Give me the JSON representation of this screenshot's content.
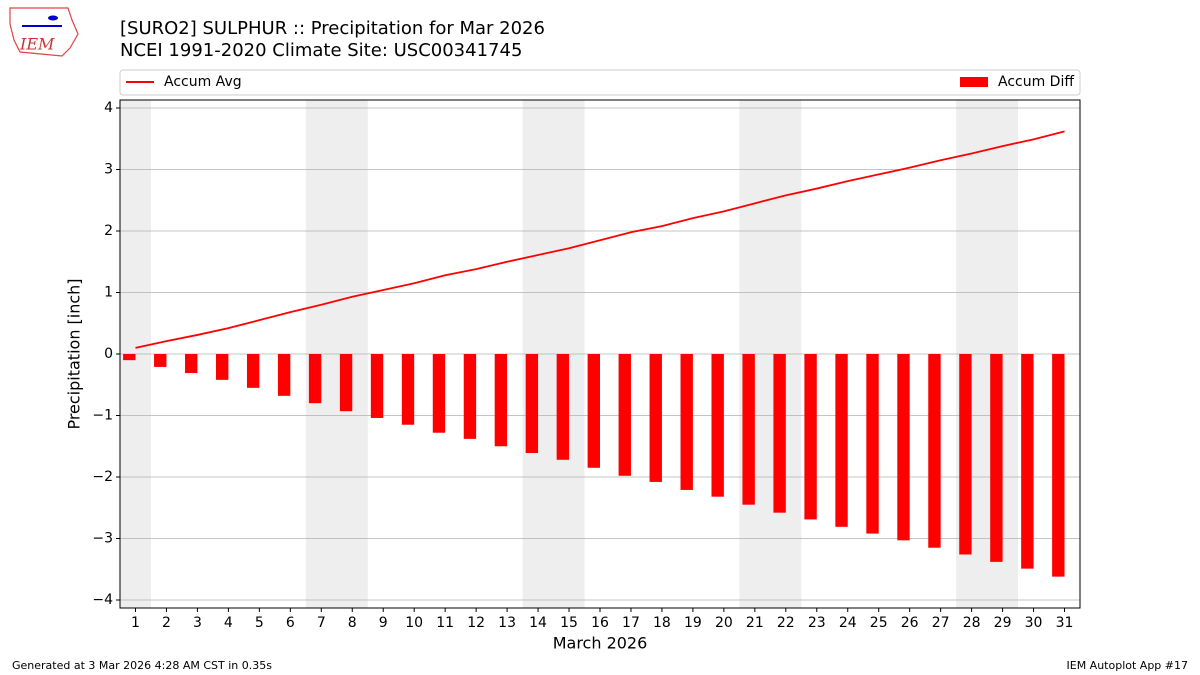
{
  "chart_data": {
    "type": "bar_line",
    "title": "[SURO2] SULPHUR :: Precipitation for Mar 2026",
    "subtitle": "NCEI 1991-2020 Climate Site: USC00341745",
    "xlabel": "March 2026",
    "ylabel": "Precipitation [inch]",
    "logo": "IEM",
    "footer_left": "Generated at 3 Mar 2026 4:28 AM CST in 0.35s",
    "footer_right": "IEM Autoplot App #17",
    "x": [
      1,
      2,
      3,
      4,
      5,
      6,
      7,
      8,
      9,
      10,
      11,
      12,
      13,
      14,
      15,
      16,
      17,
      18,
      19,
      20,
      21,
      22,
      23,
      24,
      25,
      26,
      27,
      28,
      29,
      30,
      31
    ],
    "xlim": [
      0.5,
      31.5
    ],
    "ylim": [
      -4.13,
      4.13
    ],
    "yticks": [
      {
        "value": -4,
        "label": "−4"
      },
      {
        "value": -3,
        "label": "−3"
      },
      {
        "value": -2,
        "label": "−2"
      },
      {
        "value": -1,
        "label": "−1"
      },
      0,
      1,
      2,
      3,
      4
    ],
    "grid": true,
    "shaded_ranges": [
      [
        0.5,
        1.5
      ],
      [
        6.5,
        8.5
      ],
      [
        13.5,
        15.5
      ],
      [
        20.5,
        22.5
      ],
      [
        27.5,
        29.5
      ]
    ],
    "shade_color": "#eeeeee",
    "series": [
      {
        "name": "Accum Avg",
        "kind": "line",
        "color": "#ff0000",
        "values": [
          0.1,
          0.21,
          0.31,
          0.42,
          0.55,
          0.68,
          0.8,
          0.93,
          1.04,
          1.15,
          1.28,
          1.38,
          1.5,
          1.61,
          1.72,
          1.85,
          1.98,
          2.08,
          2.21,
          2.32,
          2.45,
          2.58,
          2.69,
          2.81,
          2.92,
          3.03,
          3.15,
          3.26,
          3.38,
          3.49,
          3.62
        ]
      },
      {
        "name": "Accum Diff",
        "kind": "bar",
        "color": "#ff0000",
        "values": [
          -0.1,
          -0.21,
          -0.31,
          -0.42,
          -0.55,
          -0.68,
          -0.8,
          -0.93,
          -1.04,
          -1.15,
          -1.28,
          -1.38,
          -1.5,
          -1.61,
          -1.72,
          -1.85,
          -1.98,
          -2.08,
          -2.21,
          -2.32,
          -2.45,
          -2.58,
          -2.69,
          -2.81,
          -2.92,
          -3.03,
          -3.15,
          -3.26,
          -3.38,
          -3.49,
          -3.62
        ]
      }
    ]
  }
}
